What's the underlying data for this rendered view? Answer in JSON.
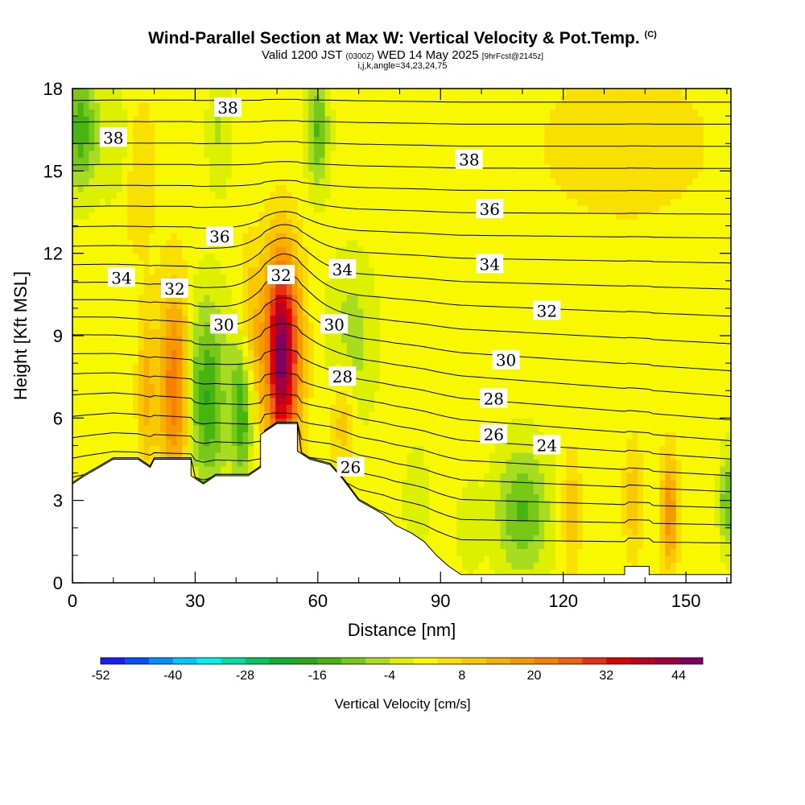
{
  "chart_data": {
    "type": "heatmap",
    "title": "Wind-Parallel Section at Max W: Vertical Velocity & Pot.Temp.",
    "copyright": "(C)",
    "subtitle_main": "Valid 1200 JST",
    "subtitle_z": "(0300Z)",
    "subtitle_date": "WED 14 May 2025",
    "subtitle_fcst": "[9hrFcst@2145z]",
    "subtitle2": "i,j,k,angle=34,23,24,75",
    "xlabel": "Distance [nm]",
    "ylabel": "Height [Kft MSL]",
    "xlim": [
      0,
      161
    ],
    "ylim": [
      0,
      18
    ],
    "x_ticks": [
      "0",
      "30",
      "60",
      "90",
      "120",
      "150"
    ],
    "x_tick_values": [
      0,
      30,
      60,
      90,
      120,
      150
    ],
    "y_ticks": [
      "0",
      "3",
      "6",
      "9",
      "12",
      "15",
      "18"
    ],
    "y_tick_values": [
      0,
      3,
      6,
      9,
      12,
      15,
      18
    ],
    "colorbar": {
      "label": "Vertical Velocity [cm/s]",
      "min": -52,
      "max": 48,
      "step": 4,
      "tick_labels": [
        "-52",
        "-40",
        "-28",
        "-16",
        "-4",
        "8",
        "20",
        "32",
        "44"
      ],
      "tick_values": [
        -52,
        -40,
        -28,
        -16,
        -4,
        8,
        20,
        32,
        44
      ],
      "colors": [
        "#1a1aff",
        "#0050ff",
        "#0090ff",
        "#00c8ff",
        "#00f0f0",
        "#00e0a0",
        "#00c860",
        "#10b030",
        "#28a818",
        "#48b410",
        "#78c818",
        "#a8dc20",
        "#dcf000",
        "#f8f800",
        "#f8e000",
        "#f8c800",
        "#f8b000",
        "#f89800",
        "#f88000",
        "#f06010",
        "#e83010",
        "#e00000",
        "#c00020",
        "#a00040",
        "#800060"
      ]
    },
    "contours": {
      "field": "Pot.Temp.",
      "labels": [
        {
          "text": "38",
          "x": 38,
          "y": 17.3
        },
        {
          "text": "38",
          "x": 10,
          "y": 16.2
        },
        {
          "text": "38",
          "x": 97,
          "y": 15.4
        },
        {
          "text": "36",
          "x": 102,
          "y": 13.6
        },
        {
          "text": "36",
          "x": 36,
          "y": 12.6
        },
        {
          "text": "34",
          "x": 12,
          "y": 11.1
        },
        {
          "text": "34",
          "x": 102,
          "y": 11.6
        },
        {
          "text": "34",
          "x": 66,
          "y": 11.4
        },
        {
          "text": "32",
          "x": 51,
          "y": 11.2
        },
        {
          "text": "32",
          "x": 25,
          "y": 10.7
        },
        {
          "text": "32",
          "x": 116,
          "y": 9.9
        },
        {
          "text": "30",
          "x": 37,
          "y": 9.4
        },
        {
          "text": "30",
          "x": 64,
          "y": 9.4
        },
        {
          "text": "30",
          "x": 106,
          "y": 8.1
        },
        {
          "text": "28",
          "x": 66,
          "y": 7.5
        },
        {
          "text": "28",
          "x": 103,
          "y": 6.7
        },
        {
          "text": "26",
          "x": 103,
          "y": 5.4
        },
        {
          "text": "26",
          "x": 68,
          "y": 4.2
        },
        {
          "text": "24",
          "x": 116,
          "y": 5.0
        }
      ]
    },
    "terrain_profile": [
      [
        0,
        3.6
      ],
      [
        3,
        3.9
      ],
      [
        10,
        4.5
      ],
      [
        16,
        4.5
      ],
      [
        19,
        4.2
      ],
      [
        20,
        4.5
      ],
      [
        29,
        4.5
      ],
      [
        29,
        3.9
      ],
      [
        32,
        3.6
      ],
      [
        35,
        3.9
      ],
      [
        43,
        3.9
      ],
      [
        46,
        4.2
      ],
      [
        46,
        5.4
      ],
      [
        50,
        5.8
      ],
      [
        55,
        5.8
      ],
      [
        55,
        4.8
      ],
      [
        58,
        4.5
      ],
      [
        63,
        4.3
      ],
      [
        66,
        3.8
      ],
      [
        70,
        3.0
      ],
      [
        76,
        2.5
      ],
      [
        79,
        2.1
      ],
      [
        83,
        1.8
      ],
      [
        86,
        1.5
      ],
      [
        89,
        1.0
      ],
      [
        92,
        0.6
      ],
      [
        95,
        0.3
      ],
      [
        100,
        0.3
      ],
      [
        135,
        0.3
      ],
      [
        135,
        0.6
      ],
      [
        141,
        0.6
      ],
      [
        141,
        0.3
      ],
      [
        161,
        0.3
      ]
    ],
    "w_features": [
      {
        "x": 51,
        "y": 8.3,
        "wx": 3.2,
        "wy": 2.6,
        "w": 46
      },
      {
        "x": 25,
        "y": 7.2,
        "wx": 2.8,
        "wy": 2.6,
        "w": 22
      },
      {
        "x": 18,
        "y": 7.0,
        "wx": 1.5,
        "wy": 2.0,
        "w": 12
      },
      {
        "x": 43,
        "y": 8.0,
        "wx": 1.8,
        "wy": 2.5,
        "w": 16
      },
      {
        "x": 33,
        "y": 6.8,
        "wx": 3.2,
        "wy": 2.4,
        "w": -18
      },
      {
        "x": 42,
        "y": 6.5,
        "wx": 2.0,
        "wy": 2.0,
        "w": -26
      },
      {
        "x": 48,
        "y": 7.2,
        "wx": 1.2,
        "wy": 2.0,
        "w": -6
      },
      {
        "x": 29,
        "y": 7.5,
        "wx": 1.0,
        "wy": 1.8,
        "w": -6
      },
      {
        "x": 2,
        "y": 16.5,
        "wx": 3.0,
        "wy": 1.5,
        "w": -16
      },
      {
        "x": 12,
        "y": 15.8,
        "wx": 3.0,
        "wy": 1.6,
        "w": -6
      },
      {
        "x": 60,
        "y": 16.5,
        "wx": 1.8,
        "wy": 1.5,
        "w": -14
      },
      {
        "x": 36,
        "y": 16.5,
        "wx": 2.0,
        "wy": 1.5,
        "w": -6
      },
      {
        "x": 68,
        "y": 8.8,
        "wx": 4.0,
        "wy": 2.0,
        "w": -8
      },
      {
        "x": 110,
        "y": 2.6,
        "wx": 4.5,
        "wy": 1.6,
        "w": -14
      },
      {
        "x": 84,
        "y": 3.0,
        "wx": 2.2,
        "wy": 1.5,
        "w": -4
      },
      {
        "x": 97,
        "y": 2.0,
        "wx": 2.0,
        "wy": 1.2,
        "w": -4
      },
      {
        "x": 146,
        "y": 2.6,
        "wx": 1.5,
        "wy": 1.5,
        "w": 18
      },
      {
        "x": 122,
        "y": 2.6,
        "wx": 1.5,
        "wy": 1.5,
        "w": 10
      },
      {
        "x": 137,
        "y": 3.0,
        "wx": 1.5,
        "wy": 1.5,
        "w": 10
      },
      {
        "x": 160,
        "y": 3.0,
        "wx": 1.2,
        "wy": 1.2,
        "w": -14
      },
      {
        "x": 66,
        "y": 6.0,
        "wx": 2.0,
        "wy": 1.5,
        "w": 10
      },
      {
        "x": 16,
        "y": 15.0,
        "wx": 3.0,
        "wy": 2.0,
        "w": 8
      },
      {
        "x": 135,
        "y": 16.0,
        "wx": 15.0,
        "wy": 2.0,
        "w": 6
      }
    ]
  }
}
